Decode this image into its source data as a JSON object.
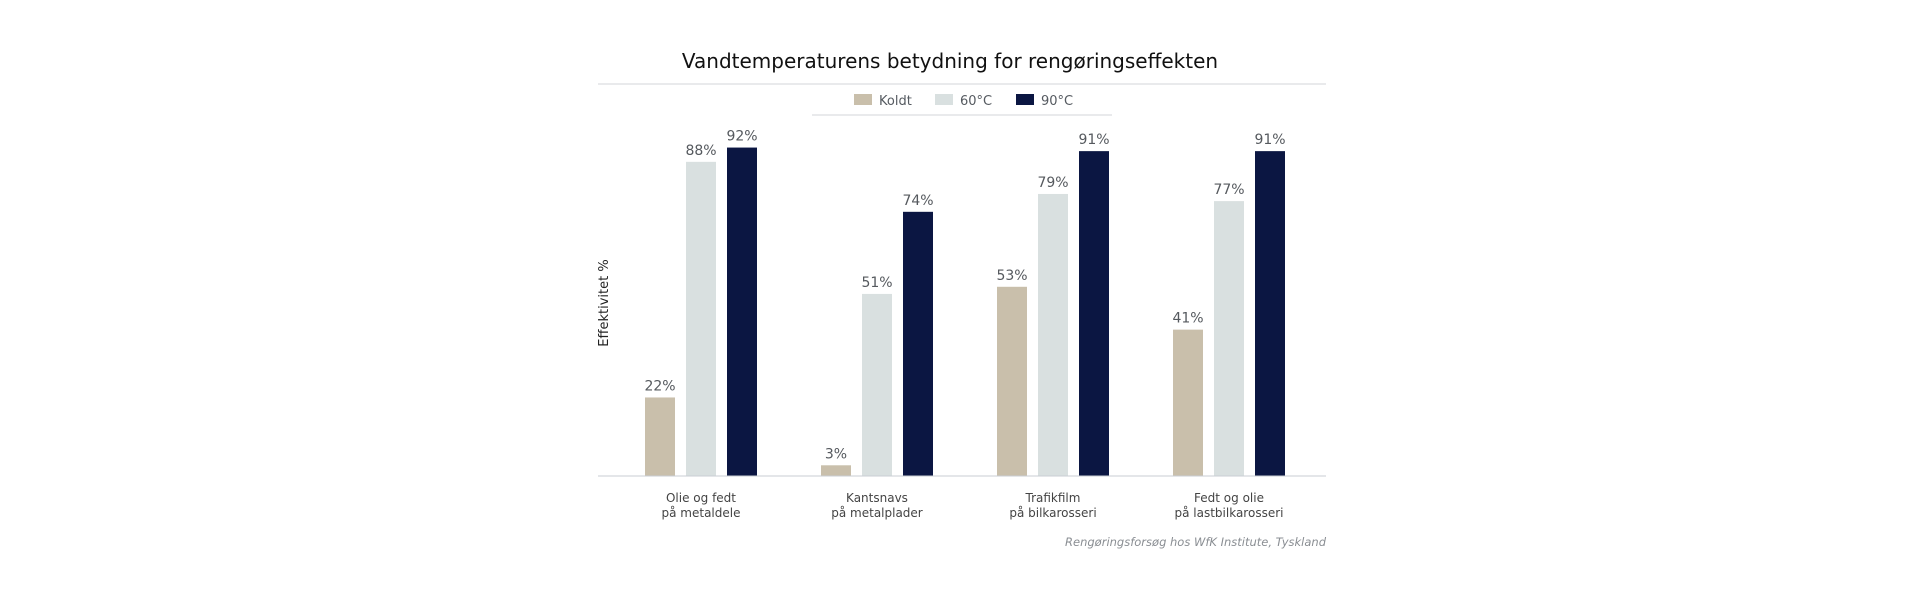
{
  "chart_data": {
    "type": "bar",
    "title": "Vandtemperaturens betydning for rengøringseffekten",
    "ylabel": "Effektivitet %",
    "xlabel": "",
    "ylim": [
      0,
      100
    ],
    "grid": false,
    "legend_position": "top-center",
    "categories": [
      [
        "Olie og fedt",
        "på metaldele"
      ],
      [
        "Kantsnavs",
        "på metalplader"
      ],
      [
        "Trafikfilm",
        "på bilkarosseri"
      ],
      [
        "Fedt og olie",
        "på lastbilkarosseri"
      ]
    ],
    "series": [
      {
        "name": "Koldt",
        "color": "#c9bfab",
        "values": [
          22,
          3,
          53,
          41
        ],
        "labels": [
          "22%",
          "3%",
          "53%",
          "41%"
        ]
      },
      {
        "name": "60°C",
        "color": "#d9e0e0",
        "values": [
          88,
          51,
          79,
          77
        ],
        "labels": [
          "88%",
          "51%",
          "79%",
          "77%"
        ]
      },
      {
        "name": "90°C",
        "color": "#0b1642",
        "values": [
          92,
          74,
          91,
          91
        ],
        "labels": [
          "92%",
          "74%",
          "91%",
          "91%"
        ]
      }
    ],
    "source": "Rengøringsforsøg hos WfK Institute, Tyskland"
  }
}
